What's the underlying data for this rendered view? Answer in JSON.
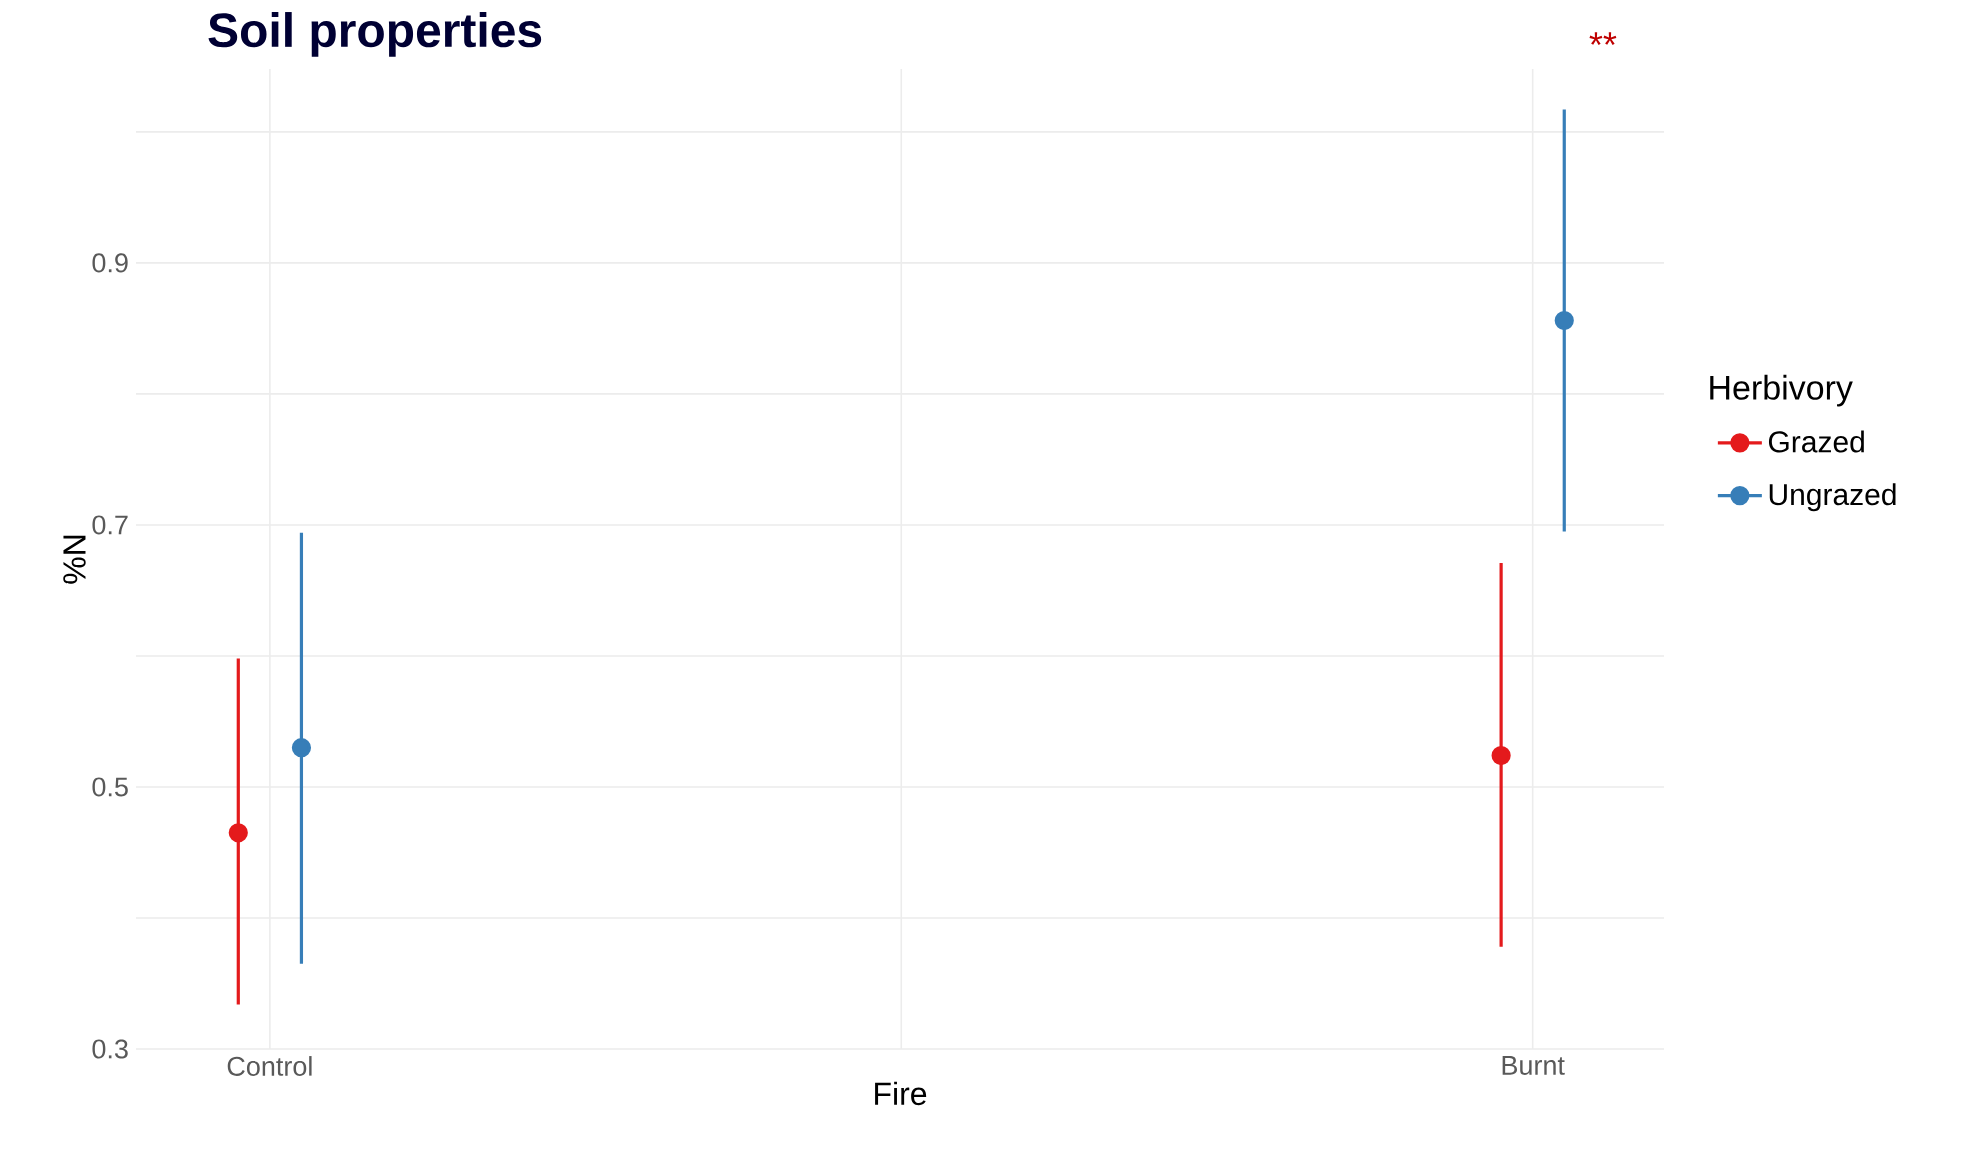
{
  "chart_data": {
    "type": "scatter",
    "title": "Soil properties",
    "xlabel": "Fire",
    "ylabel": "%N",
    "legend_title": "Herbivory",
    "categories": [
      "Control",
      "Burnt"
    ],
    "series": [
      {
        "name": "Grazed",
        "color": "#e41a1c",
        "values": [
          0.465,
          0.524
        ],
        "errors": [
          [
            0.334,
            0.598
          ],
          [
            0.378,
            0.671
          ]
        ]
      },
      {
        "name": "Ungrazed",
        "color": "#377eb8",
        "values": [
          0.53,
          0.856
        ],
        "errors": [
          [
            0.365,
            0.694
          ],
          [
            0.695,
            1.017
          ]
        ]
      }
    ],
    "ylim": [
      0.3,
      1.048
    ],
    "yticks": [
      0.3,
      {
        "value": 0.4,
        "label": null
      },
      0.5,
      {
        "value": 0.6,
        "label": null
      },
      0.7,
      {
        "value": 0.8,
        "label": null
      },
      0.9,
      {
        "value": 1.0,
        "label": null
      }
    ],
    "annotations": [
      "**"
    ],
    "grid": true,
    "legend": "right",
    "marker": "circle"
  }
}
